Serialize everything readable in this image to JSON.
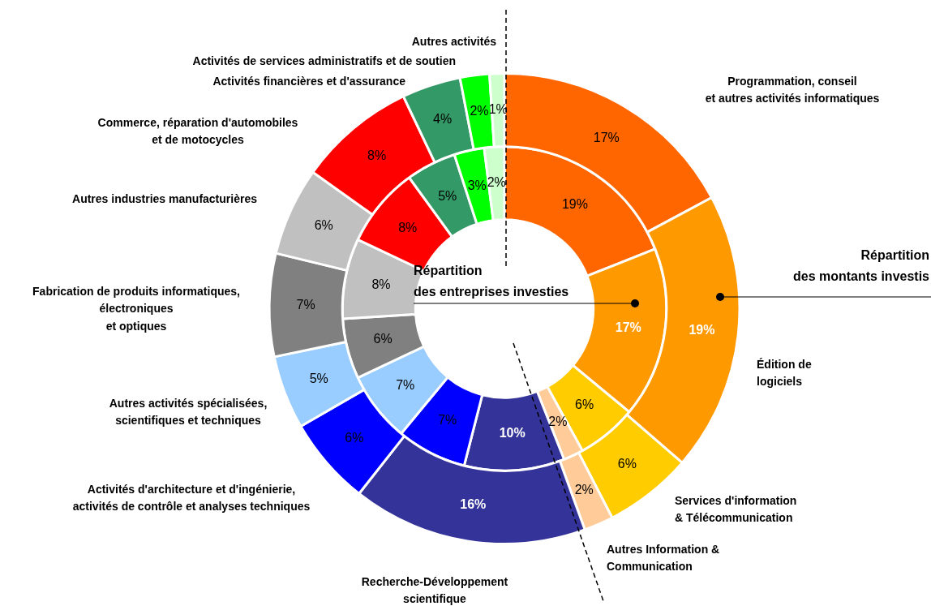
{
  "chart_data": {
    "type": "donut",
    "categories": [
      "Programmation, conseil\net autres activités informatiques",
      "Édition de\nlogiciels",
      "Services d'information\n& Télécommunication",
      "Autres Information &\nCommunication",
      "Recherche-Développement\nscientifique",
      "Activités d'architecture et d'ingénierie,\nactivités de contrôle et analyses techniques",
      "Autres activités spécialisées,\nscientifiques et techniques",
      "Fabrication de produits informatiques,\nélectroniques\net optiques",
      "Autres industries manufacturières",
      "Commerce, réparation d'automobiles\net de motocycles",
      "Activités financières et d'assurance",
      "Activités de services administratifs et de soutien",
      "Autres activités"
    ],
    "colors": [
      "#ff6600",
      "#ff9900",
      "#ffcc00",
      "#ffcc99",
      "#333399",
      "#0000ff",
      "#99ccff",
      "#808080",
      "#c0c0c0",
      "#ff0000",
      "#339966",
      "#00ff00",
      "#ccffcc"
    ],
    "series": [
      {
        "name": "Répartition\ndes montants investis",
        "values": [
          17,
          19,
          6,
          2,
          16,
          6,
          5,
          7,
          6,
          8,
          4,
          2,
          1
        ],
        "value_labels": [
          "17%",
          "19%",
          "6%",
          "2%",
          "16%",
          "6%",
          "5%",
          "7%",
          "6%",
          "8%",
          "4%",
          "2%",
          "1%"
        ]
      },
      {
        "name": "Répartition\ndes entreprises investies",
        "values": [
          19,
          17,
          6,
          2,
          10,
          7,
          7,
          6,
          8,
          8,
          5,
          3,
          2
        ],
        "value_labels": [
          "19%",
          "17%",
          "6%",
          "2%",
          "10%",
          "7%",
          "7%",
          "6%",
          "8%",
          "8%",
          "5%",
          "3%",
          "2%"
        ]
      }
    ],
    "legend": false
  }
}
